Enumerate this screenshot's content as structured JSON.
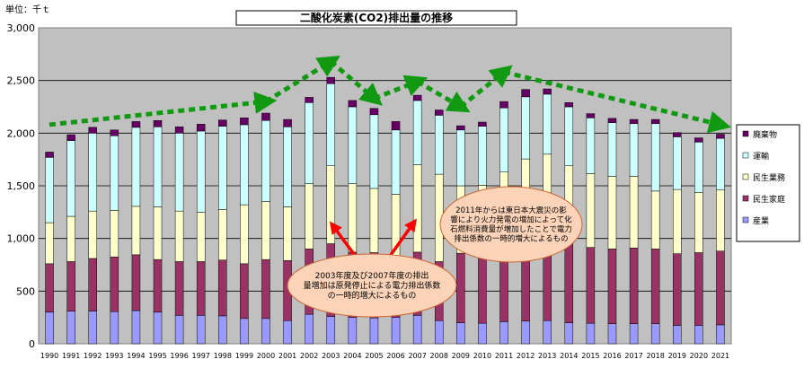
{
  "chart_data": {
    "type": "bar",
    "stacked": true,
    "title": "二酸化炭素(CO2)排出量の推移",
    "unit_label": "単位：千ｔ",
    "categories": [
      "1990",
      "1991",
      "1992",
      "1993",
      "1994",
      "1995",
      "1996",
      "1997",
      "1998",
      "1999",
      "2000",
      "2001",
      "2002",
      "2003",
      "2004",
      "2005",
      "2006",
      "2007",
      "2008",
      "2009",
      "2010",
      "2011",
      "2012",
      "2013",
      "2014",
      "2015",
      "2016",
      "2017",
      "2018",
      "2019",
      "2020",
      "2021"
    ],
    "ylim": [
      0,
      3000
    ],
    "yticks": [
      "0",
      "500",
      "1,000",
      "1,500",
      "2,000",
      "2,500",
      "3,000"
    ],
    "grid": true,
    "legend_position": "right",
    "series": [
      {
        "name": "産業",
        "color": "#9999ff",
        "values": [
          300,
          310,
          310,
          305,
          315,
          300,
          270,
          270,
          265,
          240,
          240,
          220,
          280,
          260,
          250,
          245,
          250,
          270,
          220,
          200,
          195,
          210,
          215,
          220,
          200,
          195,
          190,
          190,
          190,
          175,
          175,
          180
        ]
      },
      {
        "name": "民生家庭",
        "color": "#993366",
        "values": [
          460,
          470,
          500,
          520,
          530,
          500,
          510,
          510,
          530,
          520,
          560,
          570,
          620,
          690,
          620,
          620,
          540,
          600,
          560,
          660,
          700,
          720,
          770,
          760,
          760,
          720,
          710,
          720,
          710,
          680,
          690,
          700
        ]
      },
      {
        "name": "民生業務",
        "color": "#ffffcc",
        "values": [
          390,
          430,
          450,
          440,
          460,
          500,
          480,
          470,
          480,
          560,
          550,
          510,
          620,
          740,
          650,
          610,
          630,
          830,
          830,
          640,
          610,
          700,
          770,
          820,
          730,
          700,
          690,
          680,
          550,
          610,
          570,
          580
        ]
      },
      {
        "name": "運輸",
        "color": "#ccffff",
        "values": [
          620,
          720,
          740,
          710,
          750,
          760,
          740,
          770,
          790,
          760,
          770,
          760,
          770,
          780,
          730,
          700,
          610,
          610,
          560,
          530,
          560,
          610,
          590,
          570,
          560,
          530,
          510,
          500,
          640,
          500,
          480,
          490
        ]
      },
      {
        "name": "廃棄物",
        "color": "#660066",
        "values": [
          50,
          55,
          55,
          55,
          55,
          60,
          60,
          65,
          60,
          65,
          70,
          70,
          50,
          60,
          60,
          60,
          80,
          50,
          50,
          40,
          40,
          60,
          70,
          50,
          40,
          40,
          40,
          40,
          40,
          40,
          40,
          40
        ]
      }
    ],
    "legend_order": [
      "廃棄物",
      "運輸",
      "民生業務",
      "民生家庭",
      "産業"
    ],
    "trend_line": [
      {
        "year": "1990",
        "value": 2080
      },
      {
        "year": "2000",
        "value": 2300
      },
      {
        "year": "2003",
        "value": 2680
      },
      {
        "year": "2005",
        "value": 2330
      },
      {
        "year": "2007",
        "value": 2490
      },
      {
        "year": "2009",
        "value": 2250
      },
      {
        "year": "2011",
        "value": 2580
      },
      {
        "year": "2021",
        "value": 2080
      }
    ],
    "annotations": [
      {
        "text": "2003年度及び2007年度の排出量増加は原発停止による電力排出係数の一時的増大によるもの",
        "arrow_targets": [
          "2003",
          "2007"
        ]
      },
      {
        "text": "2011年からは東日本大震災の影響により火力発電の増加によって化石燃料消費量が増加したことで電力排出係数の一時的増大によるもの"
      }
    ]
  }
}
